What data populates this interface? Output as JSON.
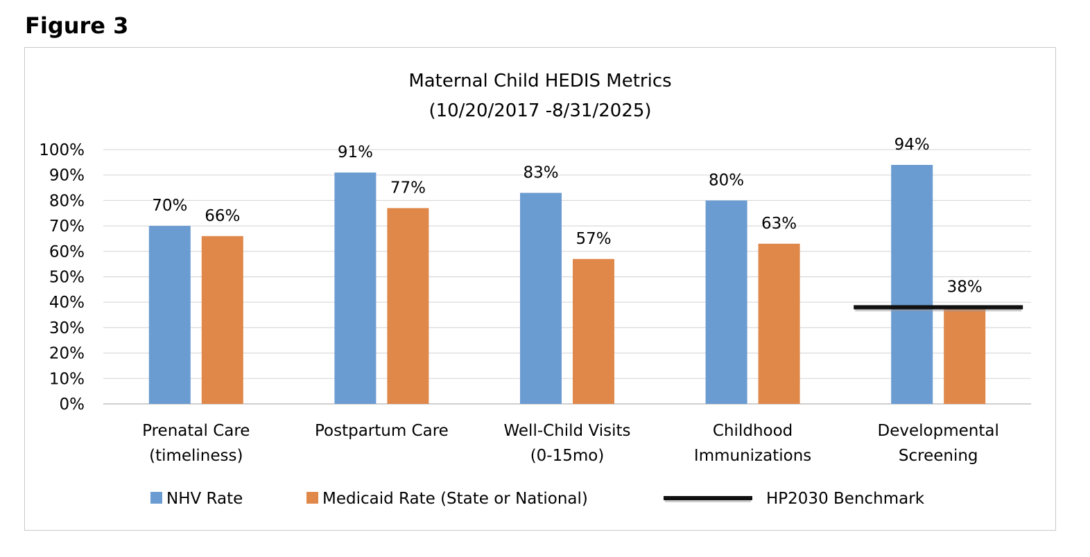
{
  "figure_label": "Figure 3",
  "chart_data": {
    "type": "bar",
    "title": "Maternal Child HEDIS Metrics",
    "subtitle": "(10/20/2017 -8/31/2025)",
    "categories": [
      [
        "Prenatal Care",
        "(timeliness)"
      ],
      [
        "Postpartum Care"
      ],
      [
        "Well-Child Visits",
        "(0-15mo)"
      ],
      [
        "Childhood",
        "Immunizations"
      ],
      [
        "Developmental",
        "Screening"
      ]
    ],
    "series": [
      {
        "name": "NHV Rate",
        "values": [
          70,
          91,
          83,
          80,
          94
        ],
        "labels": [
          "70%",
          "91%",
          "83%",
          "80%",
          "94%"
        ],
        "color": "#6a9bd1"
      },
      {
        "name": "Medicaid Rate (State or National)",
        "values": [
          66,
          77,
          57,
          63,
          38
        ],
        "labels": [
          "66%",
          "77%",
          "57%",
          "63%",
          "38%"
        ],
        "color": "#e0874a"
      }
    ],
    "benchmark": {
      "name": "HP2030 Benchmark",
      "category_index": 4,
      "value": 38,
      "color": "#111111"
    },
    "y_ticks": [
      "0%",
      "10%",
      "20%",
      "30%",
      "40%",
      "50%",
      "60%",
      "70%",
      "80%",
      "90%",
      "100%"
    ],
    "ylim": [
      0,
      100
    ],
    "grid": true,
    "legend_position": "bottom"
  }
}
